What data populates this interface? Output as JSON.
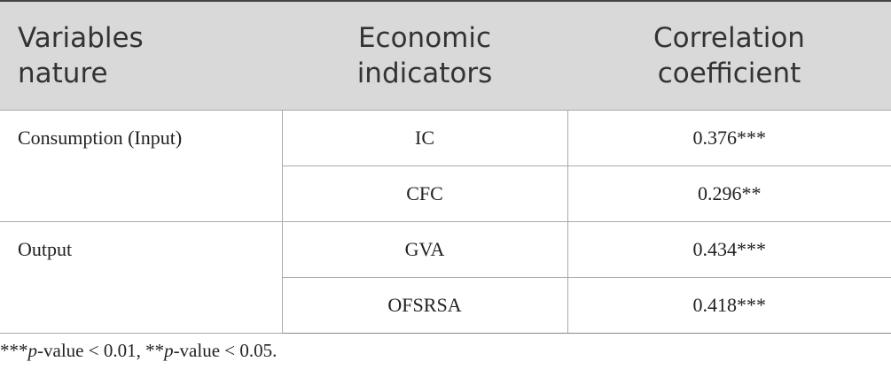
{
  "table": {
    "header": [
      "Variables nature",
      "Economic indicators",
      "Correlation coefficient"
    ],
    "groups": [
      {
        "label": "Consumption (Input)",
        "rows": [
          [
            "IC",
            "0.376***"
          ],
          [
            "CFC",
            "0.296**"
          ]
        ]
      },
      {
        "label": "Output",
        "rows": [
          [
            "GVA",
            "0.434***"
          ],
          [
            "OFSRSA",
            "0.418***"
          ]
        ]
      }
    ]
  },
  "footnote": [
    "***",
    "p",
    "-value < 0.01, **",
    "p",
    "-value < 0.05."
  ]
}
